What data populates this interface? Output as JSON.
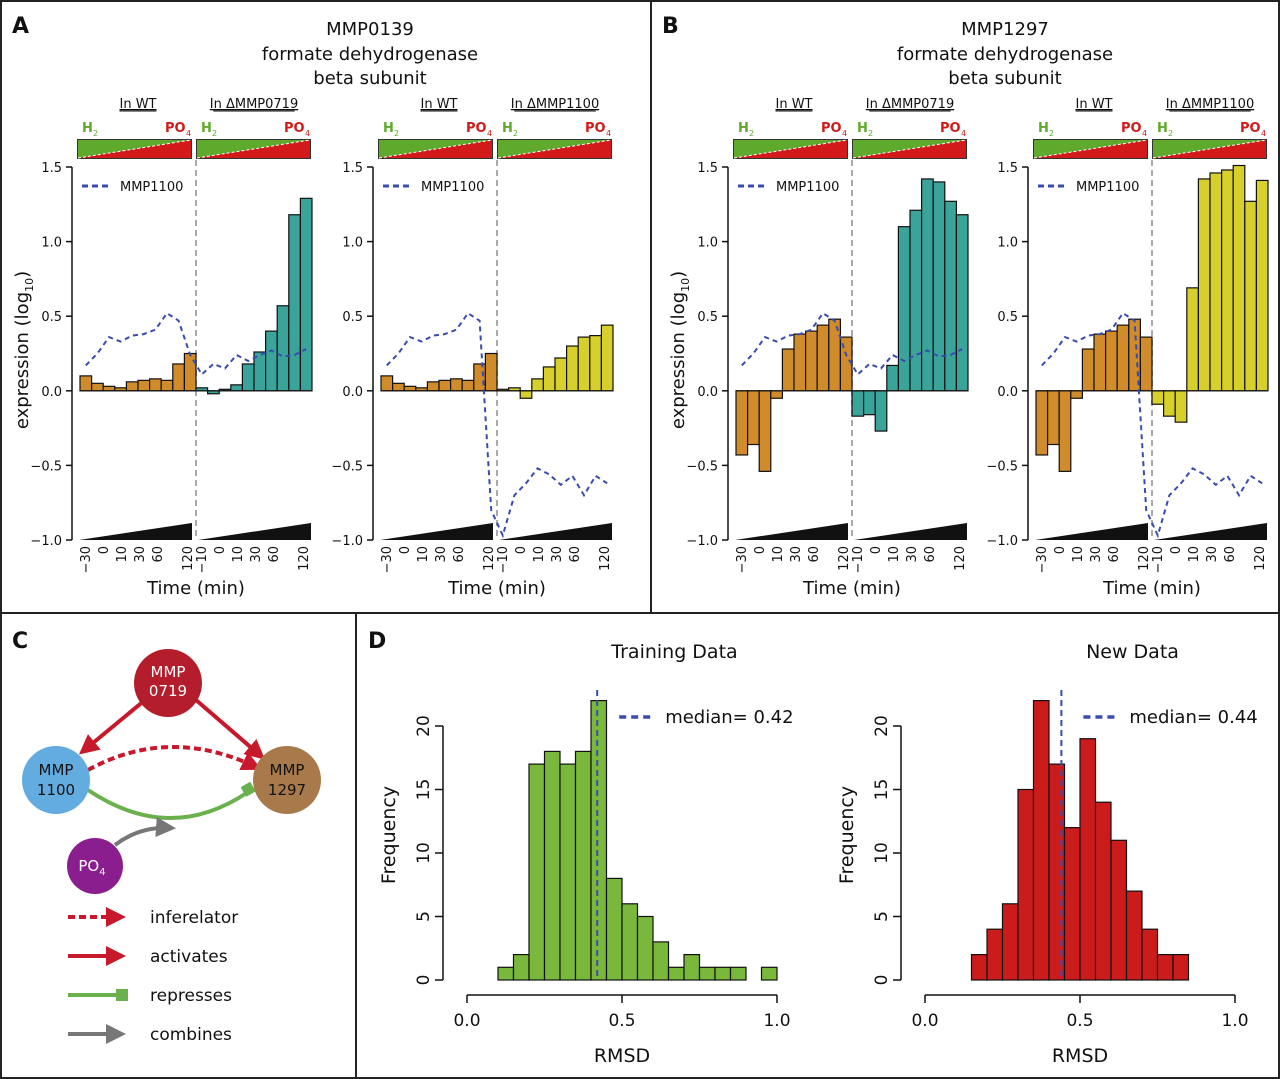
{
  "panels": {
    "A": {
      "letter": "A",
      "title": [
        "MMP0139",
        "formate dehydrogenase",
        "beta subunit"
      ]
    },
    "B": {
      "letter": "B",
      "title": [
        "MMP1297",
        "formate dehydrogenase",
        "beta subunit"
      ]
    },
    "C": {
      "letter": "C",
      "nodes": {
        "mmp0719": [
          "MMP",
          "0719"
        ],
        "mmp1100": [
          "MMP",
          "1100"
        ],
        "mmp1297": [
          "MMP",
          "1297"
        ],
        "po4": "PO"
      },
      "po4_sub": "4",
      "legend": [
        "inferelator",
        "activates",
        "represses",
        "combines"
      ]
    },
    "D": {
      "letter": "D"
    }
  },
  "labels": {
    "h2": "H",
    "h2_sub": "2",
    "po4": "PO",
    "po4_sub": "4",
    "legend_dashed": "MMP1100",
    "xlabel": "Time (min)",
    "ylabel": "expression (log",
    "ylabel_sub": "10",
    "ylabel_end": ")"
  },
  "colors": {
    "wt_bar": "#d08b2a",
    "mmp0719_bar": "#3aa39a",
    "mmp1100_bar": "#d6cf2c",
    "dashed_line": "#3a4bb0",
    "hist_training": "#7ab83b",
    "hist_new": "#cc1b1b",
    "h2_green": "#5faa2c",
    "po4_red": "#d31a1a",
    "node_0719": "#b31d2c",
    "node_1100": "#63ace0",
    "node_1297": "#a87a4b",
    "node_po4": "#8a1e8e"
  },
  "chart_data": [
    {
      "id": "A1",
      "type": "bar",
      "panel": "A",
      "segments": [
        "In WT",
        "In ΔMMP0719"
      ],
      "ticks": [
        "−30",
        "0",
        "10",
        "30",
        "60",
        "120",
        "−10",
        "0",
        "10",
        "30",
        "60",
        "120"
      ],
      "ylim": [
        -1.0,
        1.5
      ],
      "yticks": [
        "−1.0",
        "−0.5",
        "0.0",
        "0.5",
        "1.0",
        "1.5"
      ],
      "series": [
        {
          "name": "In WT",
          "values": [
            0.1,
            0.05,
            0.03,
            0.02,
            0.06,
            0.07,
            0.08,
            0.07,
            0.18,
            0.25
          ]
        },
        {
          "name": "In ΔMMP0719",
          "values": [
            0.02,
            -0.02,
            0.01,
            0.04,
            0.18,
            0.26,
            0.4,
            0.57,
            1.18,
            1.29
          ]
        }
      ],
      "line": {
        "name": "MMP1100",
        "values": [
          0.17,
          0.25,
          0.36,
          0.33,
          0.37,
          0.38,
          0.41,
          0.52,
          0.47,
          0.24,
          0.11,
          0.18,
          0.15,
          0.24,
          0.2,
          0.24,
          0.27,
          0.23,
          0.24,
          0.28
        ]
      }
    },
    {
      "id": "A2",
      "type": "bar",
      "panel": "A",
      "segments": [
        "In WT",
        "In ΔMMP1100"
      ],
      "ticks": [
        "−30",
        "0",
        "10",
        "30",
        "60",
        "120",
        "−10",
        "0",
        "10",
        "30",
        "60",
        "120"
      ],
      "ylim": [
        -1.0,
        1.5
      ],
      "yticks": [
        "−1.0",
        "−0.5",
        "0.0",
        "0.5",
        "1.0",
        "1.5"
      ],
      "series": [
        {
          "name": "In WT",
          "values": [
            0.1,
            0.05,
            0.03,
            0.02,
            0.06,
            0.07,
            0.08,
            0.07,
            0.18,
            0.25
          ]
        },
        {
          "name": "In ΔMMP1100",
          "values": [
            0.01,
            0.02,
            -0.05,
            0.08,
            0.16,
            0.22,
            0.3,
            0.36,
            0.37,
            0.44
          ]
        }
      ],
      "line": {
        "name": "MMP1100",
        "values": [
          0.17,
          0.25,
          0.36,
          0.33,
          0.37,
          0.38,
          0.41,
          0.52,
          0.47,
          -0.8,
          -0.97,
          -0.7,
          -0.62,
          -0.52,
          -0.56,
          -0.63,
          -0.57,
          -0.7,
          -0.57,
          -0.62
        ]
      }
    },
    {
      "id": "B1",
      "type": "bar",
      "panel": "B",
      "segments": [
        "In WT",
        "In ΔMMP0719"
      ],
      "ticks": [
        "−30",
        "0",
        "10",
        "30",
        "60",
        "120",
        "−10",
        "0",
        "10",
        "30",
        "60",
        "120"
      ],
      "ylim": [
        -1.0,
        1.5
      ],
      "yticks": [
        "−1.0",
        "−0.5",
        "0.0",
        "0.5",
        "1.0",
        "1.5"
      ],
      "series": [
        {
          "name": "In WT",
          "values": [
            -0.43,
            -0.36,
            -0.54,
            -0.05,
            0.28,
            0.38,
            0.4,
            0.44,
            0.48,
            0.36
          ]
        },
        {
          "name": "In ΔMMP0719",
          "values": [
            -0.17,
            -0.16,
            -0.27,
            0.17,
            1.1,
            1.21,
            1.42,
            1.4,
            1.27,
            1.18
          ]
        }
      ],
      "line": {
        "name": "MMP1100",
        "values": [
          0.17,
          0.25,
          0.36,
          0.33,
          0.37,
          0.38,
          0.41,
          0.52,
          0.47,
          0.24,
          0.11,
          0.18,
          0.15,
          0.24,
          0.2,
          0.24,
          0.27,
          0.23,
          0.24,
          0.28
        ]
      }
    },
    {
      "id": "B2",
      "type": "bar",
      "panel": "B",
      "segments": [
        "In WT",
        "In ΔMMP1100"
      ],
      "ticks": [
        "−30",
        "0",
        "10",
        "30",
        "60",
        "120",
        "−10",
        "0",
        "10",
        "30",
        "60",
        "120"
      ],
      "ylim": [
        -1.0,
        1.5
      ],
      "yticks": [
        "−1.0",
        "−0.5",
        "0.0",
        "0.5",
        "1.0",
        "1.5"
      ],
      "series": [
        {
          "name": "In WT",
          "values": [
            -0.43,
            -0.36,
            -0.54,
            -0.05,
            0.28,
            0.38,
            0.4,
            0.44,
            0.48,
            0.36
          ]
        },
        {
          "name": "In ΔMMP1100",
          "values": [
            -0.09,
            -0.17,
            -0.21,
            0.69,
            1.42,
            1.46,
            1.48,
            1.51,
            1.27,
            1.41
          ]
        }
      ],
      "line": {
        "name": "MMP1100",
        "values": [
          0.17,
          0.25,
          0.36,
          0.33,
          0.37,
          0.38,
          0.41,
          0.52,
          0.47,
          -0.8,
          -0.97,
          -0.7,
          -0.62,
          -0.52,
          -0.56,
          -0.63,
          -0.57,
          -0.7,
          -0.57,
          -0.62
        ]
      }
    },
    {
      "id": "D1",
      "type": "bar",
      "panel": "D",
      "subtype": "histogram",
      "title": "Training Data",
      "xlabel": "RMSD",
      "ylabel": "Frequency",
      "bin_start": 0.1,
      "bin_width": 0.05,
      "values": [
        1,
        2,
        17,
        18,
        17,
        18,
        22,
        8,
        6,
        5,
        3,
        1,
        2,
        1,
        1,
        1,
        0,
        1
      ],
      "median": 0.42,
      "median_label": "median= 0.42",
      "xlim": [
        0,
        1.1
      ],
      "xticks": [
        "0.0",
        "0.5",
        "1.0"
      ],
      "ylim": [
        0,
        22
      ],
      "yticks": [
        "0",
        "5",
        "10",
        "15",
        "20"
      ]
    },
    {
      "id": "D2",
      "type": "bar",
      "panel": "D",
      "subtype": "histogram",
      "title": "New Data",
      "xlabel": "RMSD",
      "ylabel": "Frequency",
      "bin_start": 0.15,
      "bin_width": 0.05,
      "values": [
        2,
        4,
        6,
        15,
        22,
        17,
        12,
        19,
        14,
        11,
        7,
        4,
        2,
        2
      ],
      "median": 0.44,
      "median_label": "median= 0.44",
      "xlim": [
        0,
        1.1
      ],
      "xticks": [
        "0.0",
        "0.5",
        "1.0"
      ],
      "ylim": [
        0,
        22
      ],
      "yticks": [
        "0",
        "5",
        "10",
        "15",
        "20"
      ]
    }
  ]
}
